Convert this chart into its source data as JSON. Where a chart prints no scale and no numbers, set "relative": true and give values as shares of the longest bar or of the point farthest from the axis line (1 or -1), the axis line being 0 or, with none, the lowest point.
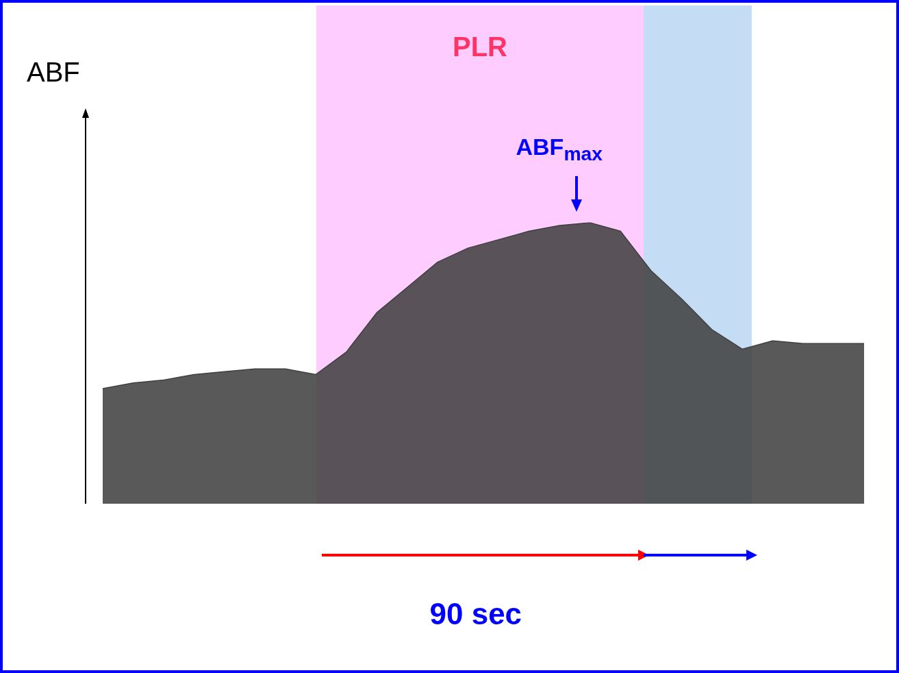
{
  "chart_data": {
    "type": "area",
    "ylabel": "ABF",
    "relative": true,
    "tick_labels": false,
    "color": "#404040",
    "categories": [
      null,
      null,
      null,
      null,
      null,
      null,
      null,
      null,
      null,
      null,
      null,
      null,
      null,
      null,
      null,
      null,
      null,
      null,
      null,
      null,
      null,
      null,
      null,
      null,
      null,
      null
    ],
    "values": [
      0.41,
      0.43,
      0.44,
      0.46,
      0.47,
      0.48,
      0.48,
      0.46,
      0.54,
      0.68,
      0.77,
      0.86,
      0.91,
      0.94,
      0.97,
      0.99,
      1,
      0.97,
      0.83,
      0.73,
      0.62,
      0.55,
      0.58,
      0.57,
      0.57,
      0.57
    ],
    "annotations": [
      "PLR",
      "ABF$_{max}$",
      "90 sec"
    ]
  }
}
